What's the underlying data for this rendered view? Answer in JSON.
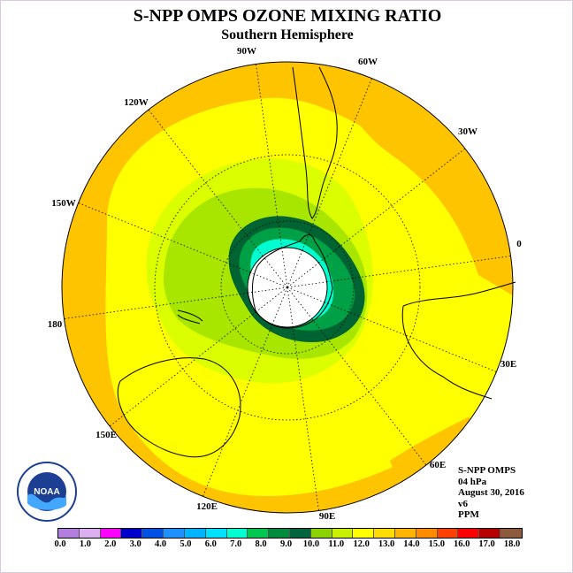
{
  "title": "S-NPP OMPS OZONE MIXING RATIO",
  "subtitle": "Southern Hemisphere",
  "longitude_labels": [
    "0",
    "30E",
    "60E",
    "90E",
    "120E",
    "150E",
    "180",
    "150W",
    "120W",
    "90W",
    "60W",
    "30W"
  ],
  "info": {
    "instrument": "S-NPP OMPS",
    "pressure_level": "04 hPa",
    "date": "August 30, 2016",
    "version": "v6",
    "units": "PPM"
  },
  "logo_text": "NOAA",
  "colorbar": {
    "labels": [
      "0.0",
      "1.0",
      "2.0",
      "3.0",
      "4.0",
      "5.0",
      "6.0",
      "7.0",
      "8.0",
      "9.0",
      "10.0",
      "11.0",
      "12.0",
      "13.0",
      "14.0",
      "15.0",
      "16.0",
      "17.0",
      "18.0"
    ],
    "colors": [
      "#b27fe0",
      "#dcb0f0",
      "#ff00ff",
      "#0000cc",
      "#0050e6",
      "#1e90ff",
      "#00b4ff",
      "#00e0ff",
      "#00ffd0",
      "#00c850",
      "#008c3c",
      "#00643c",
      "#8cd200",
      "#c8f000",
      "#ffff00",
      "#ffdc00",
      "#ffb400",
      "#ff8c00",
      "#ff4000",
      "#ff0000",
      "#b40000",
      "#8c5a3c"
    ]
  }
}
